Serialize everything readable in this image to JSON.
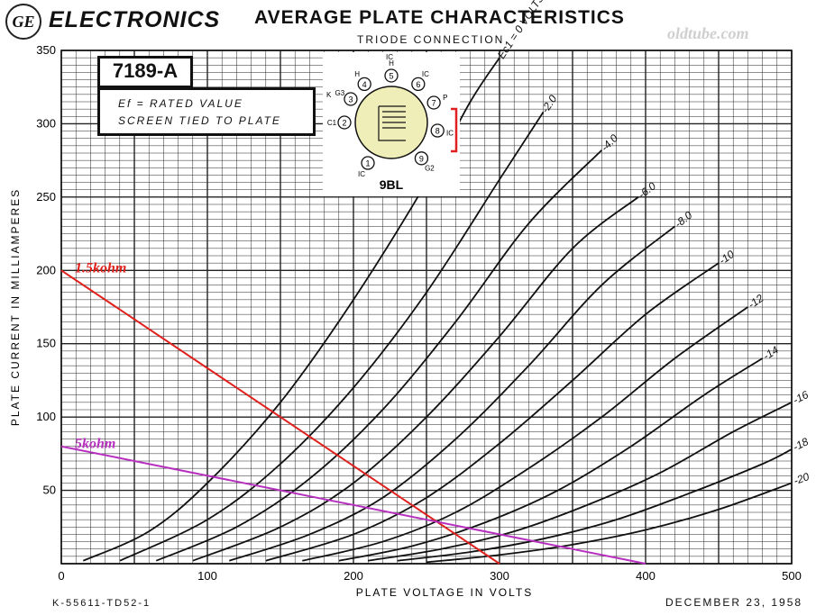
{
  "header": {
    "logo_text": "GE",
    "brand": "ELECTRONICS",
    "title": "AVERAGE PLATE CHARACTERISTICS",
    "subtitle": "TRIODE CONNECTION",
    "watermark": "oldtube.com"
  },
  "footer": {
    "left": "K-55611-TD52-1",
    "right": "DECEMBER 23, 1958"
  },
  "info": {
    "model": "7189-A",
    "cond_line1": "Ef = RATED VALUE",
    "cond_line2": "SCREEN TIED TO PLATE"
  },
  "diagram": {
    "base_label": "9BL",
    "pins": [
      {
        "n": "1",
        "label": "IC"
      },
      {
        "n": "2",
        "label": "C1"
      },
      {
        "n": "3",
        "label": "G3"
      },
      {
        "n": "4",
        "label": "H"
      },
      {
        "n": "5",
        "label": "H"
      },
      {
        "n": "6",
        "label": "IC"
      },
      {
        "n": "7",
        "label": "P"
      },
      {
        "n": "8",
        "label": "IC"
      },
      {
        "n": "9",
        "label": "G2"
      }
    ],
    "extra_labels": [
      "K",
      "IC"
    ],
    "accent_color": "#f0eeb8",
    "strap_color": "#e02020"
  },
  "chart_data": {
    "type": "line",
    "xlabel": "PLATE VOLTAGE IN VOLTS",
    "ylabel": "PLATE CURRENT IN MILLIAMPERES",
    "xlim": [
      0,
      500
    ],
    "ylim": [
      0,
      350
    ],
    "xticks": [
      "0",
      "100",
      "200",
      "300",
      "400",
      "500"
    ],
    "yticks": [
      "50",
      "100",
      "150",
      "200",
      "250",
      "300",
      "350"
    ],
    "grid": true,
    "series": [
      {
        "name": "Ec1 = 0 VOLTS",
        "points": [
          [
            15,
            2
          ],
          [
            60,
            22
          ],
          [
            100,
            55
          ],
          [
            150,
            110
          ],
          [
            200,
            180
          ],
          [
            250,
            260
          ],
          [
            280,
            315
          ],
          [
            300,
            345
          ]
        ]
      },
      {
        "name": "-2.0",
        "points": [
          [
            40,
            2
          ],
          [
            100,
            30
          ],
          [
            150,
            68
          ],
          [
            200,
            120
          ],
          [
            250,
            185
          ],
          [
            300,
            262
          ],
          [
            330,
            308
          ]
        ]
      },
      {
        "name": "-4.0",
        "points": [
          [
            65,
            2
          ],
          [
            120,
            25
          ],
          [
            170,
            58
          ],
          [
            220,
            105
          ],
          [
            270,
            165
          ],
          [
            320,
            232
          ],
          [
            370,
            282
          ]
        ]
      },
      {
        "name": "-6.0",
        "points": [
          [
            90,
            2
          ],
          [
            150,
            25
          ],
          [
            200,
            55
          ],
          [
            250,
            100
          ],
          [
            300,
            155
          ],
          [
            350,
            215
          ],
          [
            395,
            250
          ]
        ]
      },
      {
        "name": "-8.0",
        "points": [
          [
            115,
            2
          ],
          [
            170,
            20
          ],
          [
            220,
            45
          ],
          [
            270,
            85
          ],
          [
            320,
            135
          ],
          [
            370,
            190
          ],
          [
            420,
            230
          ]
        ]
      },
      {
        "name": "-10",
        "points": [
          [
            140,
            2
          ],
          [
            200,
            20
          ],
          [
            250,
            45
          ],
          [
            300,
            82
          ],
          [
            350,
            125
          ],
          [
            400,
            170
          ],
          [
            450,
            205
          ]
        ]
      },
      {
        "name": "-12",
        "points": [
          [
            165,
            2
          ],
          [
            220,
            15
          ],
          [
            270,
            35
          ],
          [
            320,
            65
          ],
          [
            370,
            100
          ],
          [
            420,
            140
          ],
          [
            470,
            175
          ]
        ]
      },
      {
        "name": "-14",
        "points": [
          [
            190,
            2
          ],
          [
            240,
            12
          ],
          [
            290,
            28
          ],
          [
            340,
            50
          ],
          [
            390,
            80
          ],
          [
            440,
            115
          ],
          [
            480,
            140
          ]
        ]
      },
      {
        "name": "-16",
        "points": [
          [
            210,
            2
          ],
          [
            260,
            10
          ],
          [
            310,
            22
          ],
          [
            360,
            40
          ],
          [
            410,
            62
          ],
          [
            460,
            90
          ],
          [
            500,
            110
          ]
        ]
      },
      {
        "name": "-18",
        "points": [
          [
            230,
            2
          ],
          [
            280,
            8
          ],
          [
            330,
            17
          ],
          [
            380,
            30
          ],
          [
            430,
            48
          ],
          [
            480,
            68
          ],
          [
            500,
            78
          ]
        ]
      },
      {
        "name": "-20",
        "points": [
          [
            250,
            1
          ],
          [
            300,
            6
          ],
          [
            350,
            13
          ],
          [
            400,
            23
          ],
          [
            450,
            37
          ],
          [
            500,
            55
          ]
        ]
      }
    ],
    "load_lines": [
      {
        "name": "1.5kohm",
        "color": "#e0201c",
        "points": [
          [
            0,
            200
          ],
          [
            300,
            0
          ]
        ]
      },
      {
        "name": "5kohm",
        "color": "#b72fbf",
        "points": [
          [
            0,
            80
          ],
          [
            400,
            0
          ]
        ]
      }
    ],
    "colors": {
      "curve": "#111111",
      "grid": "#222222"
    }
  }
}
